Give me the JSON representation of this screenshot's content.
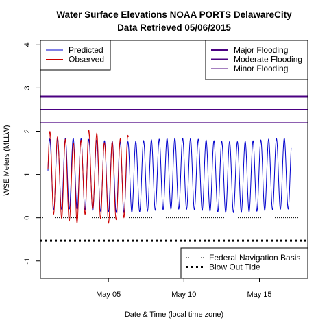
{
  "chart_data": {
    "type": "line",
    "title": "Water Surface Elevations NOAA PORTS DelawareCity",
    "subtitle": "Data Retrieved 05/06/2015",
    "xlabel": "Date & Time (local time zone)",
    "ylabel": "WSE Meters (MLLW)",
    "xlim": [
      0.0,
      17.7
    ],
    "ylim": [
      -1.4,
      4.1
    ],
    "x_ticks": [
      {
        "label": "May 05",
        "value": 4.5
      },
      {
        "label": "May 10",
        "value": 9.5
      },
      {
        "label": "May 15",
        "value": 14.5
      }
    ],
    "y_ticks": [
      {
        "label": "-1",
        "value": -1
      },
      {
        "label": "0",
        "value": 0
      },
      {
        "label": "1",
        "value": 1
      },
      {
        "label": "2",
        "value": 2
      },
      {
        "label": "3",
        "value": 3
      },
      {
        "label": "4",
        "value": 4
      }
    ],
    "reference_lines": [
      {
        "name": "Major Flooding",
        "value": 2.8,
        "color": "#4B0082",
        "width": 3,
        "dash": ""
      },
      {
        "name": "Moderate Flooding",
        "value": 2.5,
        "color": "#4B0082",
        "width": 2,
        "dash": ""
      },
      {
        "name": "Minor Flooding",
        "value": 2.2,
        "color": "#4B0082",
        "width": 1,
        "dash": ""
      },
      {
        "name": "Federal Navigation Basis",
        "value": 0.0,
        "color": "#000000",
        "width": 1,
        "dash": "1,2"
      },
      {
        "name": "Blow Out Tide",
        "value": -0.53,
        "color": "#000000",
        "width": 3,
        "dash": "3,4"
      }
    ],
    "series": [
      {
        "name": "Predicted",
        "color": "#0000CD",
        "start": 0.5,
        "end": 16.6,
        "mean": 0.98,
        "amplitude": 0.82,
        "period": 0.5175,
        "phase": 0.62
      },
      {
        "name": "Observed",
        "color": "#CC0000",
        "start": 0.5,
        "end": 5.82,
        "mean": 0.93,
        "amplitude": 0.92,
        "period": 0.5175,
        "phase": 0.62
      }
    ],
    "legends": {
      "series": {
        "position": "top-left",
        "items": [
          "Predicted",
          "Observed"
        ]
      },
      "flooding": {
        "position": "top-right",
        "items": [
          "Major Flooding",
          "Moderate Flooding",
          "Minor Flooding"
        ]
      },
      "tides": {
        "position": "bottom-right",
        "items": [
          "Federal Navigation Basis",
          "Blow Out Tide"
        ]
      }
    },
    "grid": false
  }
}
